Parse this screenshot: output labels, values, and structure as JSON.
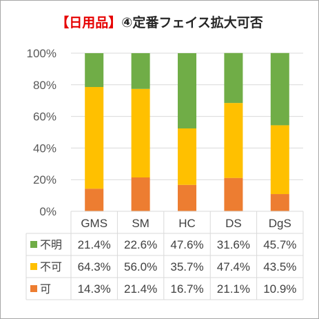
{
  "chart_data": {
    "type": "bar",
    "stacked": true,
    "title_tag": "【日用品】",
    "title_main": "④定番フェイス拡大可否",
    "categories": [
      "GMS",
      "SM",
      "HC",
      "DS",
      "DgS"
    ],
    "series": [
      {
        "name": "可",
        "color": "#ed7d31",
        "values": [
          14.3,
          21.4,
          16.7,
          21.1,
          10.9
        ]
      },
      {
        "name": "不可",
        "color": "#ffc000",
        "values": [
          64.3,
          56.0,
          35.7,
          47.4,
          43.5
        ]
      },
      {
        "name": "不明",
        "color": "#70ad47",
        "values": [
          21.4,
          22.6,
          47.6,
          31.6,
          45.7
        ]
      }
    ],
    "table_rows": [
      {
        "legend": "不明",
        "cells": [
          "21.4%",
          "22.6%",
          "47.6%",
          "31.6%",
          "45.7%"
        ]
      },
      {
        "legend": "不可",
        "cells": [
          "64.3%",
          "56.0%",
          "35.7%",
          "47.4%",
          "43.5%"
        ]
      },
      {
        "legend": "可",
        "cells": [
          "14.3%",
          "21.4%",
          "16.7%",
          "21.1%",
          "10.9%"
        ]
      }
    ],
    "yticks": [
      "0%",
      "20%",
      "40%",
      "60%",
      "80%",
      "100%"
    ],
    "ylim": [
      0,
      100
    ],
    "xlabel": "",
    "ylabel": "",
    "legend": "data-table"
  }
}
